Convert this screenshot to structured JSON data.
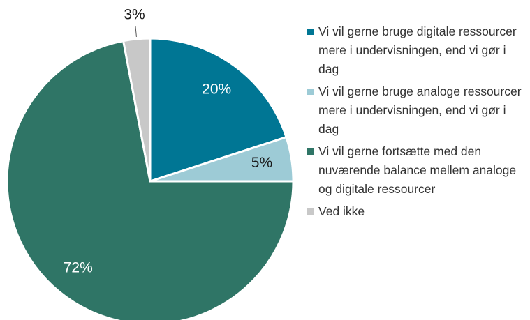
{
  "chart_data": {
    "type": "pie",
    "categories": [
      "Vi vil gerne bruge digitale ressourcer mere i undervisningen, end vi gør i dag",
      "Vi vil gerne bruge analoge ressourcer mere i undervisningen, end vi gør i dag",
      "Vi vil gerne fortsætte med den nuværende balance mellem analoge og digitale ressourcer",
      "Ved ikke"
    ],
    "values": [
      20,
      5,
      72,
      3
    ],
    "value_labels": [
      "20%",
      "5%",
      "72%",
      "3%"
    ],
    "colors": [
      "#007694",
      "#9dcbd6",
      "#2f7566",
      "#c8c8c8"
    ],
    "label_colors": [
      "#ffffff",
      "#1a1a1a",
      "#ffffff",
      "#1a1a1a"
    ],
    "legend": "right"
  }
}
